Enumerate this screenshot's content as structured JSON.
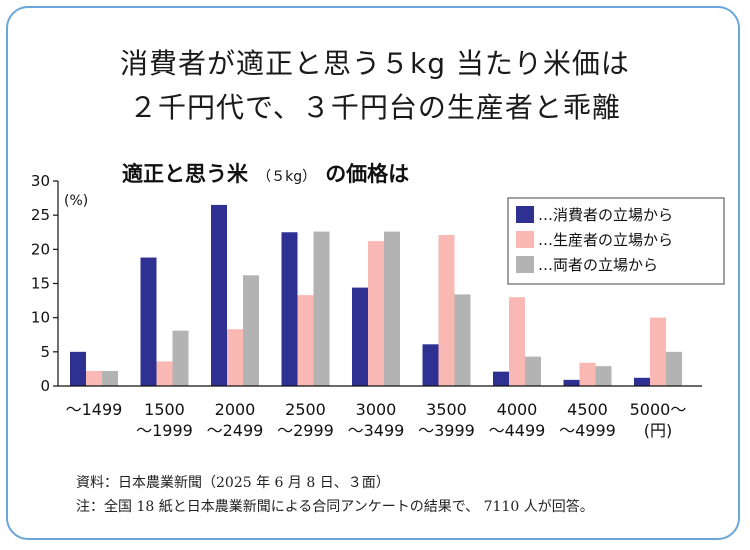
{
  "headline": {
    "line1": "消費者が適正と思う５kg 当たり米価は",
    "line2": "２千円代で、３千円台の生産者と乖離"
  },
  "chart_data": {
    "type": "bar",
    "title": "適正と思う米（５kg）の価格は",
    "title_main": "適正と思う米",
    "title_paren": "（５kg）",
    "title_end": "の価格は",
    "ylabel": "(%)",
    "ylim": [
      0,
      30
    ],
    "yticks": [
      0,
      5,
      10,
      15,
      20,
      25,
      30
    ],
    "grid": false,
    "legend_position": "top-right",
    "categories": [
      [
        "～1499"
      ],
      [
        "1500",
        "～1999"
      ],
      [
        "2000",
        "～2499"
      ],
      [
        "2500",
        "～2999"
      ],
      [
        "3000",
        "～3499"
      ],
      [
        "3500",
        "～3999"
      ],
      [
        "4000",
        "～4499"
      ],
      [
        "4500",
        "～4999"
      ],
      [
        "5000～",
        "(円)"
      ]
    ],
    "series": [
      {
        "name": "…消費者の立場から",
        "color": "#2e3192",
        "values": [
          5,
          18.8,
          26.5,
          22.5,
          14.4,
          6.1,
          2.1,
          0.9,
          1.2
        ]
      },
      {
        "name": "…生産者の立場から",
        "color": "#f9b8b4",
        "values": [
          2.2,
          3.6,
          8.3,
          13.3,
          21.2,
          22.1,
          13,
          3.4,
          10
        ]
      },
      {
        "name": "…両者の立場から",
        "color": "#b3b3b3",
        "values": [
          2.2,
          8.1,
          16.2,
          22.6,
          22.6,
          13.4,
          4.3,
          2.9,
          5
        ]
      }
    ]
  },
  "source": "資料：日本農業新聞（2025 年 6 月 8 日、３面）",
  "note": "注：全国 18 紙と日本農業新聞による合同アンケートの結果で、 7110 人が回答。"
}
